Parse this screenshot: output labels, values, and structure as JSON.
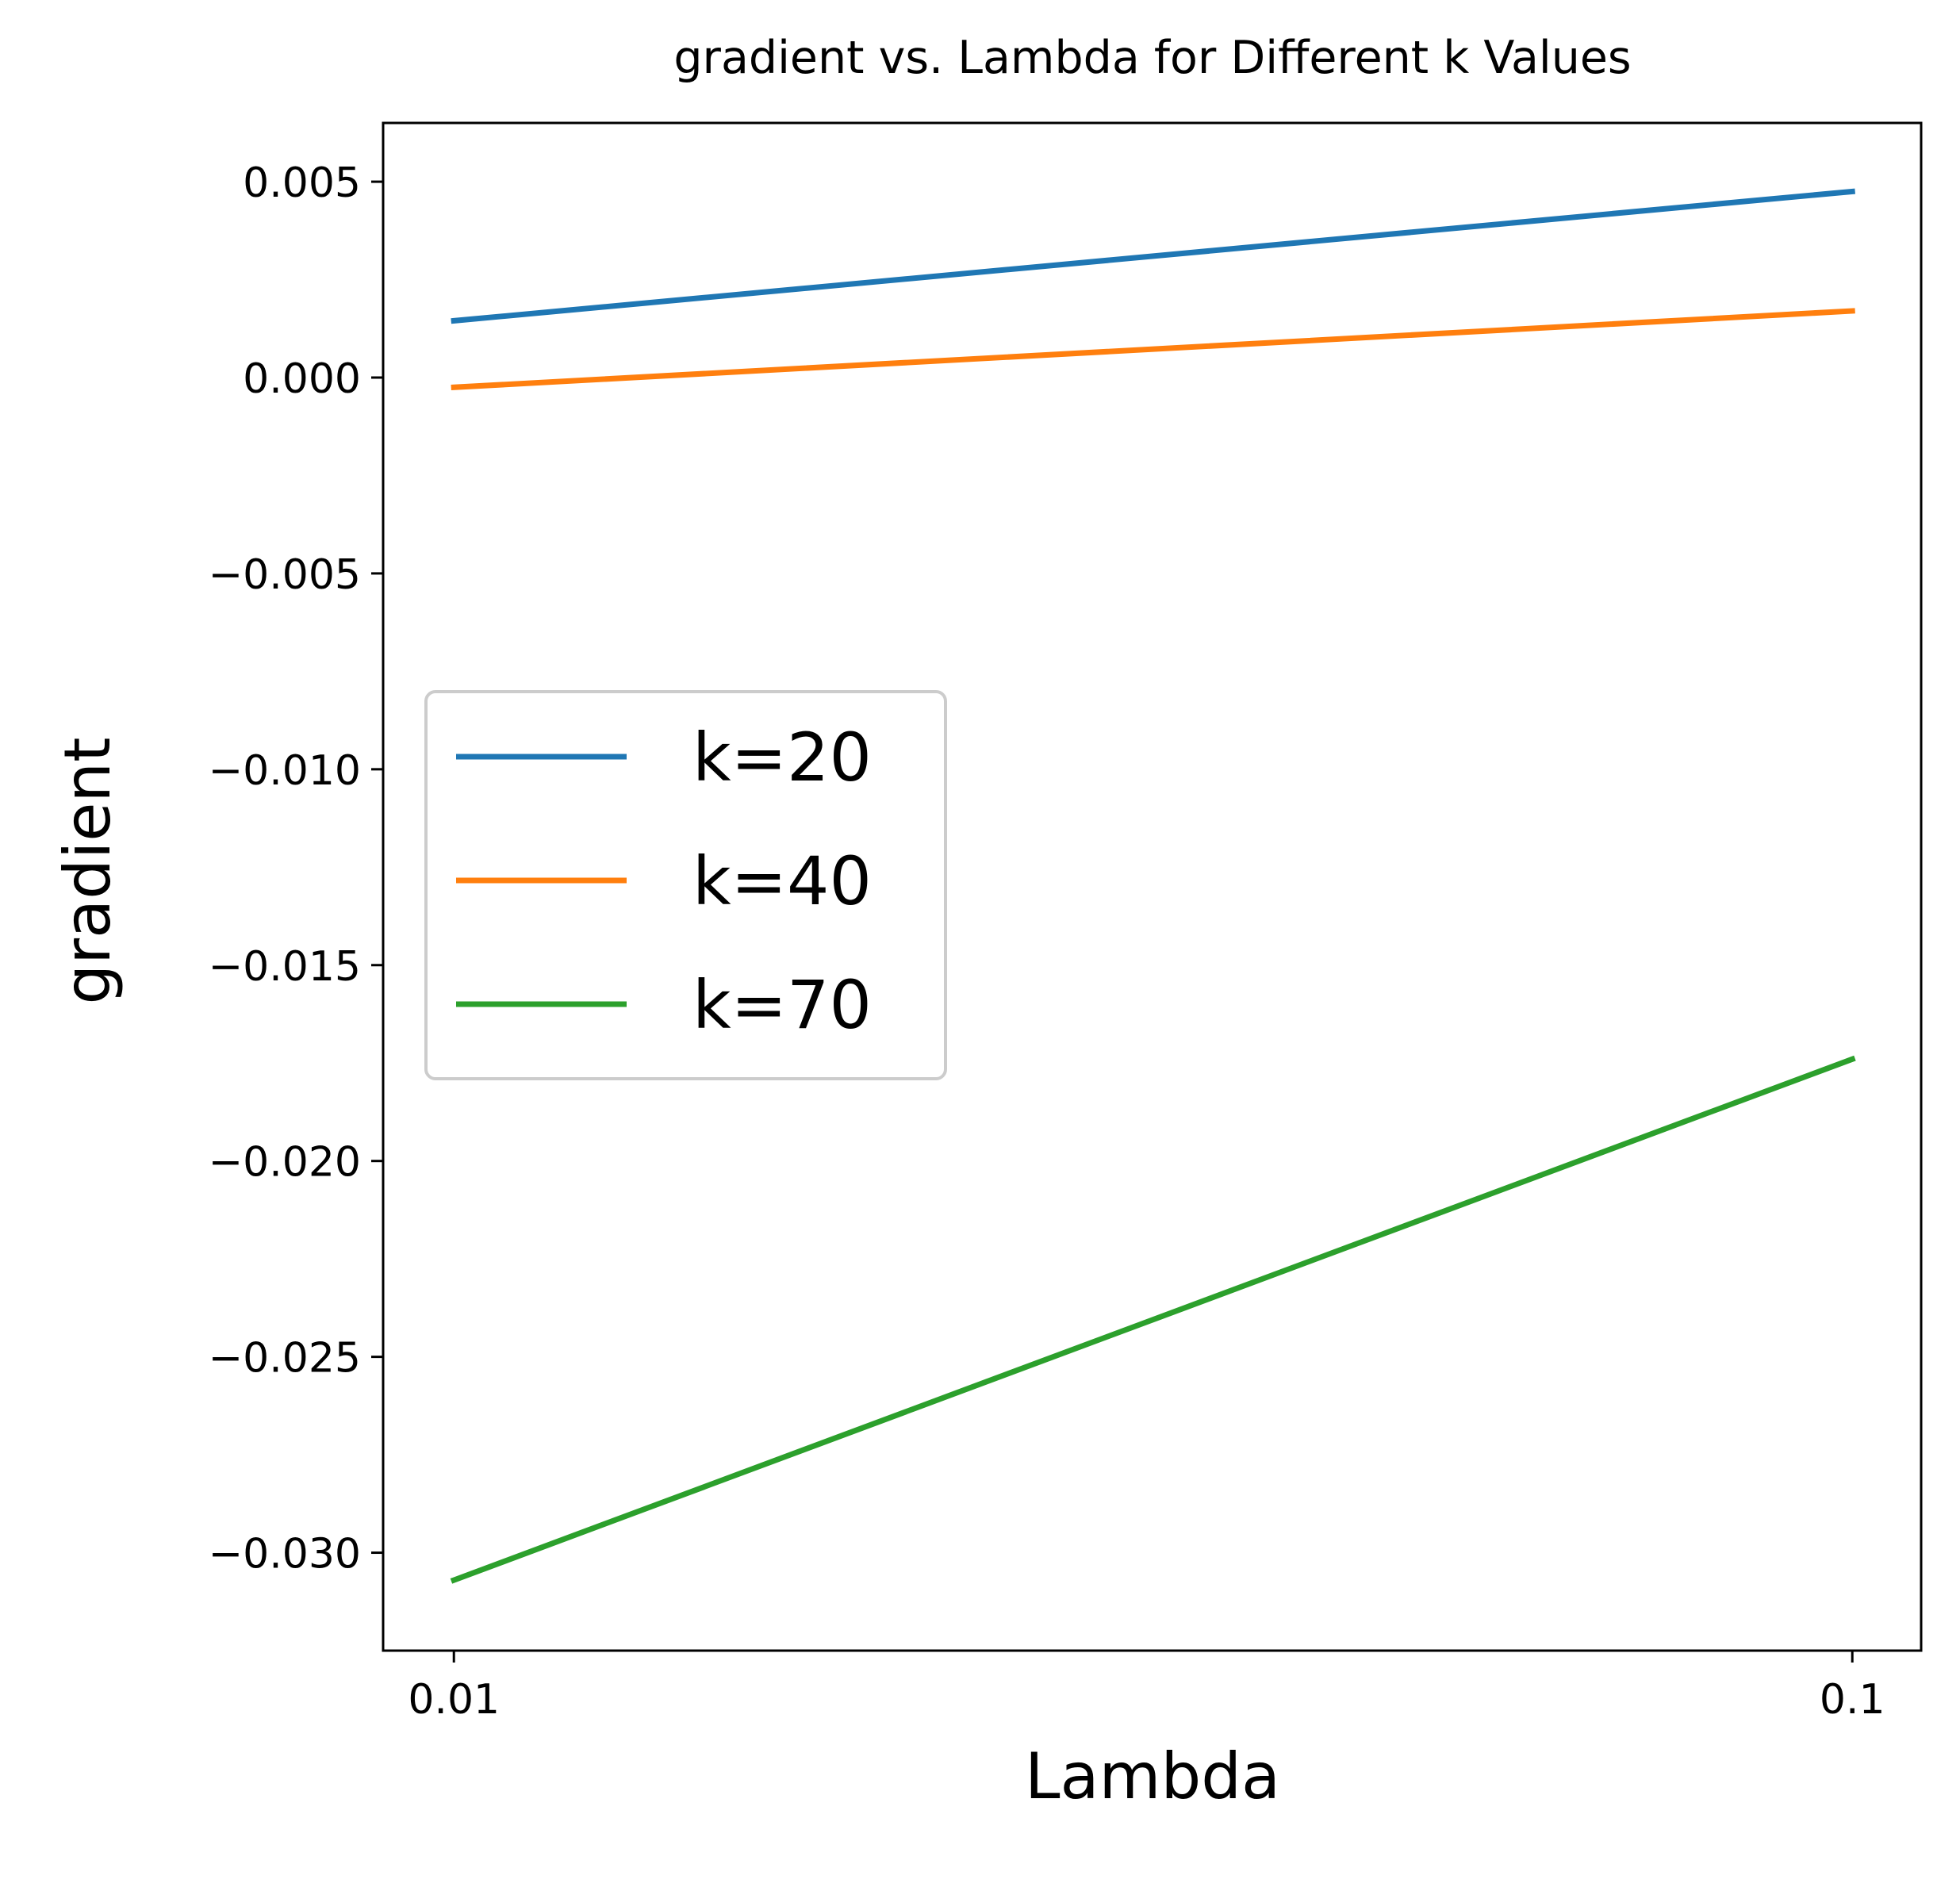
{
  "chart_data": {
    "type": "line",
    "title": "gradient vs. Lambda for Different k Values",
    "xlabel": "Lambda",
    "ylabel": "gradient",
    "x": [
      0.01,
      0.1
    ],
    "x_scale": "log",
    "x_ticks": [
      0.01,
      0.1
    ],
    "x_tick_labels": [
      "0.01",
      "0.1"
    ],
    "xlim": [
      0.0089,
      0.112
    ],
    "ylim": [
      -0.0325,
      0.0065
    ],
    "y_ticks": [
      0.005,
      0.0,
      -0.005,
      -0.01,
      -0.015,
      -0.02,
      -0.025,
      -0.03
    ],
    "y_tick_labels": [
      "0.005",
      "0.000",
      "−0.005",
      "−0.010",
      "−0.015",
      "−0.020",
      "−0.025",
      "−0.030"
    ],
    "grid": false,
    "legend_position": "center-left",
    "series": [
      {
        "name": "k=20",
        "color": "#1f77b4",
        "values": [
          0.00145,
          0.00475
        ]
      },
      {
        "name": "k=40",
        "color": "#ff7f0e",
        "values": [
          -0.00025,
          0.0017
        ]
      },
      {
        "name": "k=70",
        "color": "#2ca02c",
        "values": [
          -0.0307,
          -0.0174
        ]
      }
    ]
  }
}
